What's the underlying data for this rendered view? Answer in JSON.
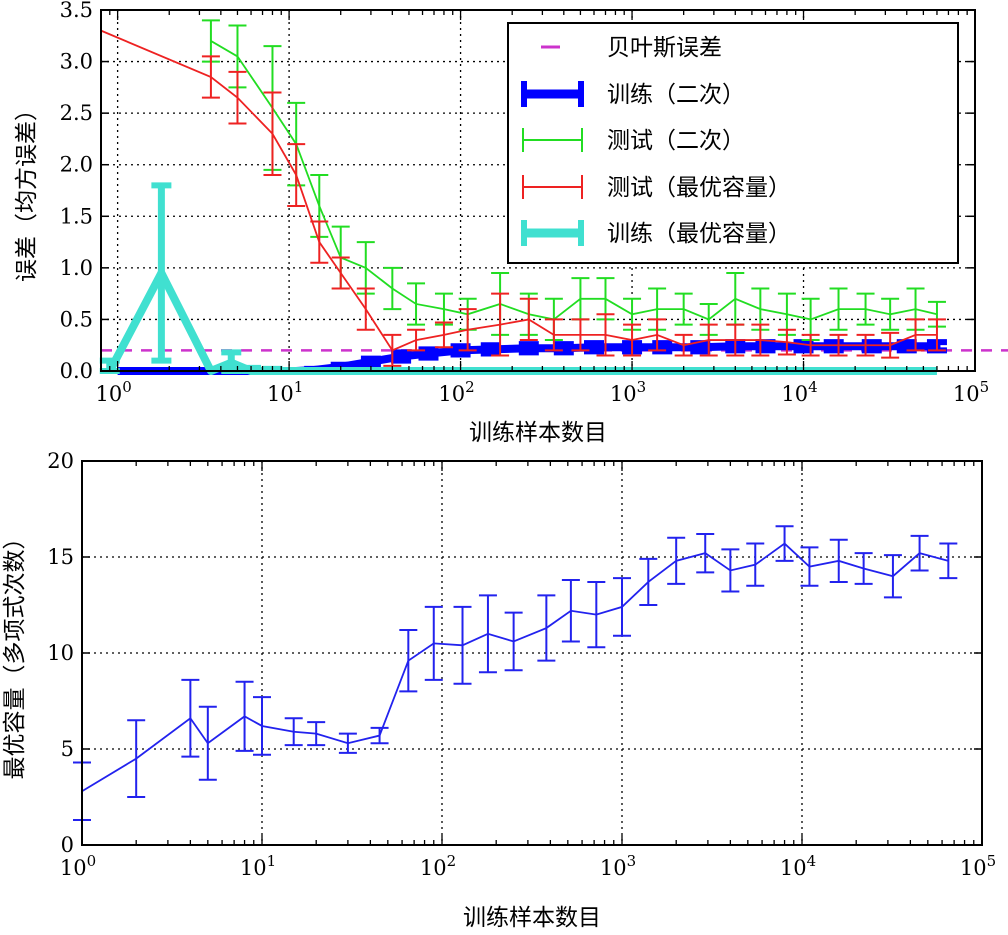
{
  "chart_data": [
    {
      "type": "line",
      "xlabel": "训练样本数目",
      "ylabel": "误差（均方误差）",
      "xscale": "log",
      "xlim": [
        0.8,
        100000
      ],
      "ylim": [
        0,
        3.5
      ],
      "xticks": [
        {
          "v": 1,
          "m": "0"
        },
        {
          "v": 10,
          "m": "1"
        },
        {
          "v": 100,
          "m": "2"
        },
        {
          "v": 1000,
          "m": "3"
        },
        {
          "v": 10000,
          "m": "4"
        },
        {
          "v": 100000,
          "m": "5"
        }
      ],
      "xtick_base": "10",
      "yticks": [
        "0.0",
        "0.5",
        "1.0",
        "1.5",
        "2.0",
        "2.5",
        "3.0",
        "3.5"
      ],
      "grid": true,
      "legend_position": "top-right",
      "legend": [
        "贝叶斯误差",
        "训练（二次）",
        "测试（二次）",
        "测试（最优容量）",
        "训练（最优容量）"
      ],
      "series": [
        {
          "name": "贝叶斯误差",
          "style": "dashed",
          "color": "#cc33cc",
          "x": [
            0.8,
            100000
          ],
          "y": [
            0.2,
            0.2
          ]
        },
        {
          "name": "训练（二次）",
          "style": "thick",
          "color": "#0000ff",
          "x": [
            1,
            2,
            4,
            6,
            8,
            11,
            14,
            20,
            30,
            45,
            65,
            100,
            150,
            250,
            400,
            600,
            1000,
            1500,
            2500,
            4000,
            6000,
            10000,
            15000,
            25000,
            40000,
            60000
          ],
          "y": [
            0,
            0,
            0,
            0,
            0,
            0,
            0.01,
            0.04,
            0.09,
            0.14,
            0.17,
            0.2,
            0.21,
            0.22,
            0.22,
            0.23,
            0.23,
            0.23,
            0.23,
            0.24,
            0.24,
            0.24,
            0.24,
            0.24,
            0.24,
            0.24
          ],
          "err": [
            0,
            0,
            0,
            0,
            0,
            0,
            0.01,
            0.02,
            0.03,
            0.04,
            0.04,
            0.04,
            0.04,
            0.04,
            0.04,
            0.04,
            0.04,
            0.04,
            0.04,
            0.04,
            0.04,
            0.04,
            0.04,
            0.04,
            0.04,
            0.04
          ]
        },
        {
          "name": "测试（二次）",
          "style": "errorbar",
          "color": "#22dd22",
          "x": [
            3.5,
            5,
            8,
            11,
            15,
            20,
            28,
            40,
            55,
            80,
            110,
            170,
            250,
            350,
            500,
            700,
            1000,
            1400,
            2000,
            2800,
            4000,
            5600,
            8000,
            11000,
            16000,
            23000,
            32000,
            45000,
            60000
          ],
          "y": [
            3.2,
            3.05,
            2.55,
            2.2,
            1.6,
            1.1,
            1.0,
            0.8,
            0.65,
            0.6,
            0.55,
            0.65,
            0.55,
            0.5,
            0.7,
            0.7,
            0.55,
            0.6,
            0.6,
            0.5,
            0.7,
            0.6,
            0.55,
            0.5,
            0.6,
            0.6,
            0.55,
            0.6,
            0.55
          ],
          "err": [
            0.2,
            0.3,
            0.6,
            0.4,
            0.3,
            0.3,
            0.25,
            0.2,
            0.2,
            0.15,
            0.15,
            0.3,
            0.2,
            0.2,
            0.2,
            0.2,
            0.15,
            0.2,
            0.15,
            0.15,
            0.25,
            0.2,
            0.2,
            0.2,
            0.2,
            0.15,
            0.15,
            0.2,
            0.12
          ]
        },
        {
          "name": "测试（最优容量）",
          "style": "errorbar",
          "color": "#ee2222",
          "x": [
            0.8,
            3.5,
            5,
            8,
            11,
            15,
            20,
            28,
            40,
            55,
            80,
            110,
            170,
            250,
            350,
            500,
            700,
            1000,
            1400,
            2000,
            2800,
            4000,
            5600,
            8000,
            11000,
            16000,
            23000,
            32000,
            45000,
            60000
          ],
          "y": [
            3.3,
            2.85,
            2.65,
            2.3,
            1.9,
            1.25,
            0.95,
            0.6,
            0.2,
            0.3,
            0.35,
            0.4,
            0.45,
            0.5,
            0.35,
            0.35,
            0.35,
            0.3,
            0.35,
            0.25,
            0.3,
            0.3,
            0.3,
            0.28,
            0.25,
            0.25,
            0.25,
            0.25,
            0.35,
            0.35
          ],
          "err": [
            0,
            0.2,
            0.25,
            0.4,
            0.3,
            0.2,
            0.15,
            0.2,
            0.15,
            0.1,
            0.12,
            0.2,
            0.3,
            0.2,
            0.15,
            0.15,
            0.2,
            0.15,
            0.15,
            0.1,
            0.15,
            0.15,
            0.15,
            0.12,
            0.1,
            0.1,
            0.1,
            0.12,
            0.15,
            0.15
          ]
        },
        {
          "name": "训练（最优容量）",
          "style": "thick",
          "color": "#40e0d0",
          "x": [
            0.9,
            1.8,
            3.5,
            4.6,
            6,
            8,
            11,
            20,
            50,
            100,
            1000,
            10000,
            60000
          ],
          "y": [
            0,
            0.95,
            0,
            0.08,
            0,
            0,
            0,
            0,
            0,
            0,
            0,
            0,
            0
          ],
          "err": [
            0.1,
            0.85,
            0,
            0.1,
            0.03,
            0.02,
            0,
            0,
            0,
            0,
            0,
            0,
            0
          ]
        }
      ]
    },
    {
      "type": "line",
      "xlabel": "训练样本数目",
      "ylabel": "最优容量（多项式次数）",
      "xscale": "log",
      "xlim": [
        1,
        100000
      ],
      "ylim": [
        0,
        20
      ],
      "xticks": [
        {
          "v": 1,
          "m": "0"
        },
        {
          "v": 10,
          "m": "1"
        },
        {
          "v": 100,
          "m": "2"
        },
        {
          "v": 1000,
          "m": "3"
        },
        {
          "v": 10000,
          "m": "4"
        },
        {
          "v": 100000,
          "m": "5"
        }
      ],
      "xtick_base": "10",
      "yticks": [
        "0",
        "5",
        "10",
        "15",
        "20"
      ],
      "grid": true,
      "series": [
        {
          "style": "errorbar",
          "color": "#2222ee",
          "x": [
            1,
            2,
            4,
            5,
            8,
            10,
            15,
            20,
            30,
            45,
            65,
            90,
            130,
            180,
            250,
            380,
            520,
            720,
            1000,
            1400,
            2000,
            2900,
            4000,
            5500,
            8000,
            11000,
            16000,
            22000,
            32000,
            45000,
            65000
          ],
          "y": [
            2.8,
            4.5,
            6.6,
            5.3,
            6.7,
            6.2,
            5.9,
            5.8,
            5.3,
            5.7,
            9.6,
            10.5,
            10.4,
            11.0,
            10.6,
            11.3,
            12.2,
            12.0,
            12.4,
            13.7,
            14.8,
            15.2,
            14.3,
            14.6,
            15.7,
            14.5,
            14.8,
            14.4,
            14.0,
            15.2,
            14.8
          ],
          "err": [
            1.5,
            2.0,
            2.0,
            1.9,
            1.8,
            1.5,
            0.7,
            0.6,
            0.5,
            0.4,
            1.6,
            1.9,
            2.0,
            2.0,
            1.5,
            1.7,
            1.6,
            1.7,
            1.5,
            1.2,
            1.2,
            1.0,
            1.1,
            1.1,
            0.9,
            1.0,
            1.1,
            0.8,
            1.1,
            0.9,
            0.9
          ]
        }
      ]
    }
  ]
}
